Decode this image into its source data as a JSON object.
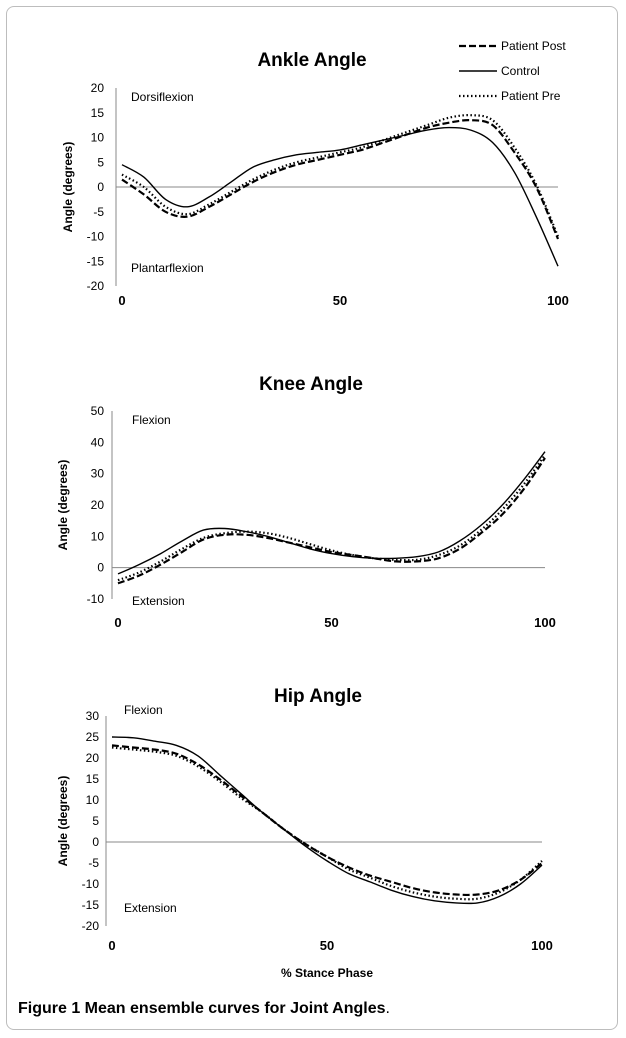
{
  "chart_data": [
    {
      "type": "line",
      "title": "Ankle Angle",
      "xlabel": "",
      "ylabel": "Angle (degrees)",
      "xlim": [
        0,
        100
      ],
      "ylim": [
        -20,
        20
      ],
      "x_ticks": [
        "0",
        "50",
        "100"
      ],
      "y_ticks": [
        "20",
        "15",
        "10",
        "5",
        "0",
        "-5",
        "-10",
        "-15",
        "-20"
      ],
      "annotations": [
        "Dorsiflexion",
        "Plantarflexion"
      ],
      "legend": {
        "position": "top-right"
      },
      "x": [
        0,
        5,
        10,
        15,
        20,
        25,
        30,
        35,
        40,
        45,
        50,
        55,
        60,
        65,
        70,
        75,
        80,
        85,
        90,
        95,
        100
      ],
      "series": [
        {
          "name": "Patient Post",
          "style": "dashed",
          "values": [
            1.5,
            -1.5,
            -5,
            -6,
            -4,
            -1.5,
            1,
            3,
            4.5,
            5.5,
            6.5,
            7.5,
            9,
            10.5,
            12,
            13,
            13.5,
            12.5,
            7,
            0,
            -10.5
          ]
        },
        {
          "name": "Control",
          "style": "solid",
          "values": [
            4.5,
            2,
            -2.5,
            -4,
            -2,
            1,
            4,
            5.5,
            6.5,
            7,
            7.5,
            8.5,
            9.5,
            10.5,
            11.5,
            12,
            11.5,
            9,
            3,
            -6,
            -16
          ]
        },
        {
          "name": "Patient Pre",
          "style": "dotted",
          "values": [
            2.5,
            0,
            -4,
            -5.5,
            -3.5,
            -1,
            1.5,
            3.5,
            5,
            6,
            7,
            8,
            9.5,
            11,
            12.5,
            14,
            14.5,
            13.5,
            8,
            0.5,
            -10
          ]
        }
      ]
    },
    {
      "type": "line",
      "title": "Knee Angle",
      "xlabel": "",
      "ylabel": "Angle (degrees)",
      "xlim": [
        0,
        100
      ],
      "ylim": [
        -10,
        50
      ],
      "x_ticks": [
        "0",
        "50",
        "100"
      ],
      "y_ticks": [
        "50",
        "40",
        "30",
        "20",
        "10",
        "0",
        "-10"
      ],
      "annotations": [
        "Flexion",
        "Extension"
      ],
      "x": [
        0,
        5,
        10,
        15,
        20,
        25,
        30,
        35,
        40,
        45,
        50,
        55,
        60,
        65,
        70,
        75,
        80,
        85,
        90,
        95,
        100
      ],
      "series": [
        {
          "name": "Patient Post",
          "style": "dashed",
          "values": [
            -5,
            -2.5,
            1,
            5,
            9,
            10.5,
            10.5,
            9.5,
            8,
            6.5,
            5,
            4,
            3,
            2,
            2,
            3,
            6,
            11,
            17,
            25,
            35
          ]
        },
        {
          "name": "Control",
          "style": "solid",
          "values": [
            -2,
            1,
            4.5,
            8.5,
            12,
            12.5,
            11.5,
            10,
            8,
            6,
            4.5,
            3.5,
            3,
            3,
            3.5,
            5,
            8.5,
            13.5,
            20,
            28,
            37
          ]
        },
        {
          "name": "Patient Pre",
          "style": "dotted",
          "values": [
            -4,
            -1.5,
            2,
            6,
            9.5,
            11,
            11.5,
            11,
            9.5,
            7.5,
            5.5,
            4,
            3,
            2.5,
            2.5,
            4,
            7,
            12,
            18.5,
            26.5,
            36
          ]
        }
      ]
    },
    {
      "type": "line",
      "title": "Hip Angle",
      "xlabel": "% Stance Phase",
      "ylabel": "Angle (degrees)",
      "xlim": [
        0,
        100
      ],
      "ylim": [
        -20,
        30
      ],
      "x_ticks": [
        "0",
        "50",
        "100"
      ],
      "y_ticks": [
        "30",
        "25",
        "20",
        "15",
        "10",
        "5",
        "0",
        "-5",
        "-10",
        "-15",
        "-20"
      ],
      "annotations": [
        "Flexion",
        "Extension"
      ],
      "x": [
        0,
        5,
        10,
        15,
        20,
        25,
        30,
        35,
        40,
        45,
        50,
        55,
        60,
        65,
        70,
        75,
        80,
        85,
        90,
        95,
        100
      ],
      "series": [
        {
          "name": "Patient Post",
          "style": "dashed",
          "values": [
            23,
            22.5,
            22,
            21,
            18.5,
            15,
            11,
            7,
            3,
            -0.5,
            -3.5,
            -6,
            -8,
            -9.5,
            -11,
            -12,
            -12.5,
            -12.5,
            -11.5,
            -9,
            -5
          ]
        },
        {
          "name": "Control",
          "style": "solid",
          "values": [
            25,
            24.8,
            24,
            23,
            20.5,
            16,
            11.5,
            7,
            3,
            -1,
            -4.5,
            -7.5,
            -9.5,
            -11.5,
            -13,
            -14,
            -14.5,
            -14.5,
            -13,
            -10,
            -5.5
          ]
        },
        {
          "name": "Patient Pre",
          "style": "dotted",
          "values": [
            22.5,
            22,
            21.5,
            20.5,
            18,
            14.5,
            10.5,
            7,
            3,
            -0.5,
            -3.5,
            -6.5,
            -8.5,
            -10.5,
            -12,
            -13,
            -13.5,
            -13.5,
            -12,
            -9,
            -4.5
          ]
        }
      ]
    }
  ],
  "colors": {
    "line": "#000000",
    "axis": "#888888"
  },
  "caption": {
    "label": "Figure 1",
    "text": " Mean ensemble curves for Joint Angles",
    "period": "."
  }
}
